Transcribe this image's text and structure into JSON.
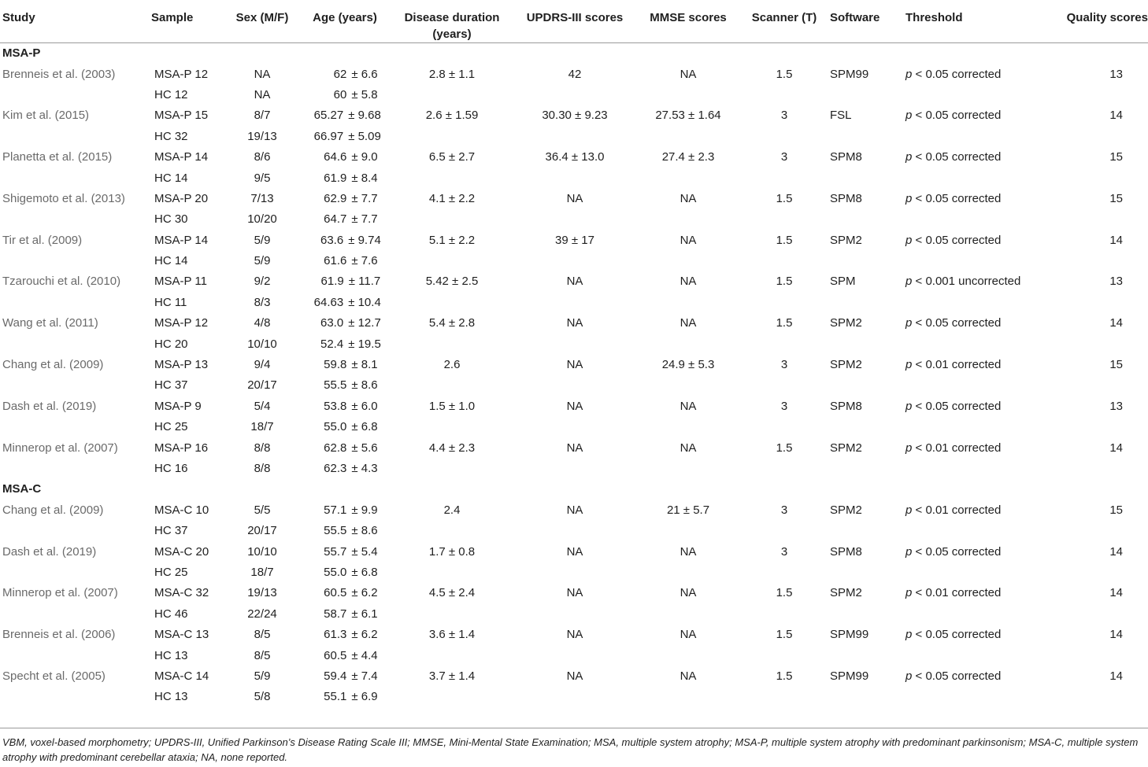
{
  "headers": {
    "study": "Study",
    "sample": "Sample",
    "sex": "Sex (M/F)",
    "age": "Age (years)",
    "duration_line1": "Disease duration",
    "duration_line2": "(years)",
    "updrs": "UPDRS-III scores",
    "mmse": "MMSE scores",
    "scanner": "Scanner (T)",
    "software": "Software",
    "threshold": "Threshold",
    "quality": "Quality scores"
  },
  "sections": [
    {
      "label": "MSA-P",
      "studies": [
        {
          "study": "Brenneis et al. (2003)",
          "patient": {
            "sample": "MSA-P 12",
            "sex": "NA",
            "age_mean": "62",
            "age_sd": "± 6.6"
          },
          "control": {
            "sample": "HC 12",
            "sex": "NA",
            "age_mean": "60",
            "age_sd": "± 5.8"
          },
          "duration": "2.8 ± 1.1",
          "updrs": "42",
          "mmse": "NA",
          "scanner": "1.5",
          "software": "SPM99",
          "threshold_p": "p",
          "threshold_rest": " < 0.05 corrected",
          "quality": "13"
        },
        {
          "study": "Kim et al. (2015)",
          "patient": {
            "sample": "MSA-P 15",
            "sex": "8/7",
            "age_mean": "65.27",
            "age_sd": "± 9.68"
          },
          "control": {
            "sample": "HC 32",
            "sex": "19/13",
            "age_mean": "66.97",
            "age_sd": "± 5.09"
          },
          "duration": "2.6 ± 1.59",
          "updrs": "30.30 ± 9.23",
          "mmse": "27.53 ± 1.64",
          "scanner": "3",
          "software": "FSL",
          "threshold_p": "p",
          "threshold_rest": " < 0.05 corrected",
          "quality": "14"
        },
        {
          "study": "Planetta et al. (2015)",
          "patient": {
            "sample": "MSA-P 14",
            "sex": "8/6",
            "age_mean": "64.6",
            "age_sd": "± 9.0"
          },
          "control": {
            "sample": "HC 14",
            "sex": "9/5",
            "age_mean": "61.9",
            "age_sd": "± 8.4"
          },
          "duration": "6.5 ± 2.7",
          "updrs": "36.4 ± 13.0",
          "mmse": "27.4 ± 2.3",
          "scanner": "3",
          "software": "SPM8",
          "threshold_p": "p",
          "threshold_rest": " < 0.05 corrected",
          "quality": "15"
        },
        {
          "study": "Shigemoto et al. (2013)",
          "patient": {
            "sample": "MSA-P 20",
            "sex": "7/13",
            "age_mean": "62.9",
            "age_sd": "± 7.7"
          },
          "control": {
            "sample": "HC 30",
            "sex": "10/20",
            "age_mean": "64.7",
            "age_sd": "± 7.7"
          },
          "duration": "4.1 ± 2.2",
          "updrs": "NA",
          "mmse": "NA",
          "scanner": "1.5",
          "software": "SPM8",
          "threshold_p": "p",
          "threshold_rest": " < 0.05 corrected",
          "quality": "15"
        },
        {
          "study": "Tir et al. (2009)",
          "patient": {
            "sample": "MSA-P 14",
            "sex": "5/9",
            "age_mean": "63.6",
            "age_sd": "± 9.74"
          },
          "control": {
            "sample": "HC 14",
            "sex": "5/9",
            "age_mean": "61.6",
            "age_sd": "± 7.6"
          },
          "duration": "5.1 ± 2.2",
          "updrs": "39 ± 17",
          "mmse": "NA",
          "scanner": "1.5",
          "software": "SPM2",
          "threshold_p": "p",
          "threshold_rest": " < 0.05 corrected",
          "quality": "14"
        },
        {
          "study": "Tzarouchi et al. (2010)",
          "patient": {
            "sample": "MSA-P 11",
            "sex": "9/2",
            "age_mean": "61.9",
            "age_sd": "± 11.7"
          },
          "control": {
            "sample": "HC 11",
            "sex": "8/3",
            "age_mean": "64.63",
            "age_sd": "± 10.4"
          },
          "duration": "5.42 ± 2.5",
          "updrs": "NA",
          "mmse": "NA",
          "scanner": "1.5",
          "software": "SPM",
          "threshold_p": "p",
          "threshold_rest": " < 0.001 uncorrected",
          "quality": "13"
        },
        {
          "study": "Wang et al. (2011)",
          "patient": {
            "sample": "MSA-P 12",
            "sex": "4/8",
            "age_mean": "63.0",
            "age_sd": "± 12.7"
          },
          "control": {
            "sample": "HC 20",
            "sex": "10/10",
            "age_mean": "52.4",
            "age_sd": "± 19.5"
          },
          "duration": "5.4 ± 2.8",
          "updrs": "NA",
          "mmse": "NA",
          "scanner": "1.5",
          "software": "SPM2",
          "threshold_p": "p",
          "threshold_rest": " < 0.05 corrected",
          "quality": "14"
        },
        {
          "study": "Chang et al. (2009)",
          "patient": {
            "sample": "MSA-P 13",
            "sex": "9/4",
            "age_mean": "59.8",
            "age_sd": "± 8.1"
          },
          "control": {
            "sample": "HC 37",
            "sex": "20/17",
            "age_mean": "55.5",
            "age_sd": "± 8.6"
          },
          "duration": "2.6",
          "updrs": "NA",
          "mmse": "24.9 ± 5.3",
          "scanner": "3",
          "software": "SPM2",
          "threshold_p": "p",
          "threshold_rest": " < 0.01 corrected",
          "quality": "15"
        },
        {
          "study": "Dash et al. (2019)",
          "patient": {
            "sample": "MSA-P 9",
            "sex": "5/4",
            "age_mean": "53.8",
            "age_sd": "± 6.0"
          },
          "control": {
            "sample": "HC 25",
            "sex": "18/7",
            "age_mean": "55.0",
            "age_sd": "± 6.8"
          },
          "duration": "1.5 ± 1.0",
          "updrs": "NA",
          "mmse": "NA",
          "scanner": "3",
          "software": "SPM8",
          "threshold_p": "p",
          "threshold_rest": " < 0.05 corrected",
          "quality": "13"
        },
        {
          "study": "Minnerop et al. (2007)",
          "patient": {
            "sample": "MSA-P 16",
            "sex": "8/8",
            "age_mean": "62.8",
            "age_sd": "± 5.6"
          },
          "control": {
            "sample": "HC 16",
            "sex": "8/8",
            "age_mean": "62.3",
            "age_sd": "± 4.3"
          },
          "duration": "4.4 ± 2.3",
          "updrs": "NA",
          "mmse": "NA",
          "scanner": "1.5",
          "software": "SPM2",
          "threshold_p": "p",
          "threshold_rest": " < 0.01 corrected",
          "quality": "14"
        }
      ]
    },
    {
      "label": "MSA-C",
      "studies": [
        {
          "study": "Chang et al. (2009)",
          "patient": {
            "sample": "MSA-C 10",
            "sex": "5/5",
            "age_mean": "57.1",
            "age_sd": "± 9.9"
          },
          "control": {
            "sample": "HC 37",
            "sex": "20/17",
            "age_mean": "55.5",
            "age_sd": "± 8.6"
          },
          "duration": "2.4",
          "updrs": "NA",
          "mmse": "21 ± 5.7",
          "scanner": "3",
          "software": "SPM2",
          "threshold_p": "p",
          "threshold_rest": " < 0.01 corrected",
          "quality": "15"
        },
        {
          "study": "Dash et al. (2019)",
          "patient": {
            "sample": "MSA-C 20",
            "sex": "10/10",
            "age_mean": "55.7",
            "age_sd": "± 5.4"
          },
          "control": {
            "sample": "HC 25",
            "sex": "18/7",
            "age_mean": "55.0",
            "age_sd": "± 6.8"
          },
          "duration": "1.7 ± 0.8",
          "updrs": "NA",
          "mmse": "NA",
          "scanner": "3",
          "software": "SPM8",
          "threshold_p": "p",
          "threshold_rest": " < 0.05 corrected",
          "quality": "14"
        },
        {
          "study": "Minnerop et al. (2007)",
          "patient": {
            "sample": "MSA-C 32",
            "sex": "19/13",
            "age_mean": "60.5",
            "age_sd": "± 6.2"
          },
          "control": {
            "sample": "HC 46",
            "sex": "22/24",
            "age_mean": "58.7",
            "age_sd": "± 6.1"
          },
          "duration": "4.5 ± 2.4",
          "updrs": "NA",
          "mmse": "NA",
          "scanner": "1.5",
          "software": "SPM2",
          "threshold_p": "p",
          "threshold_rest": " < 0.01 corrected",
          "quality": "14"
        },
        {
          "study": "Brenneis et al. (2006)",
          "patient": {
            "sample": "MSA-C 13",
            "sex": "8/5",
            "age_mean": "61.3",
            "age_sd": "± 6.2"
          },
          "control": {
            "sample": "HC 13",
            "sex": "8/5",
            "age_mean": "60.5",
            "age_sd": "± 4.4"
          },
          "duration": "3.6 ± 1.4",
          "updrs": "NA",
          "mmse": "NA",
          "scanner": "1.5",
          "software": "SPM99",
          "threshold_p": "p",
          "threshold_rest": " < 0.05 corrected",
          "quality": "14"
        },
        {
          "study": "Specht et al. (2005)",
          "patient": {
            "sample": "MSA-C 14",
            "sex": "5/9",
            "age_mean": "59.4",
            "age_sd": "± 7.4"
          },
          "control": {
            "sample": "HC 13",
            "sex": "5/8",
            "age_mean": "55.1",
            "age_sd": "± 6.9"
          },
          "duration": "3.7 ± 1.4",
          "updrs": "NA",
          "mmse": "NA",
          "scanner": "1.5",
          "software": "SPM99",
          "threshold_p": "p",
          "threshold_rest": " < 0.05 corrected",
          "quality": "14"
        }
      ]
    }
  ],
  "footnote": "VBM, voxel-based morphometry; UPDRS-III, Unified Parkinson’s Disease Rating Scale III; MMSE, Mini-Mental State Examination; MSA, multiple system atrophy; MSA-P, multiple system atrophy with predominant parkinsonism; MSA-C, multiple system atrophy with predominant cerebellar ataxia; NA, none reported."
}
